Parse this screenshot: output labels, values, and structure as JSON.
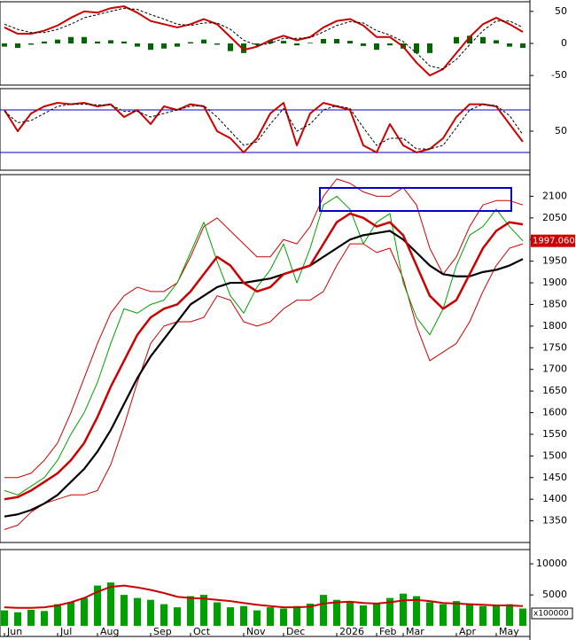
{
  "chart_data": [
    {
      "type": "line",
      "ylim": [
        -65,
        65
      ],
      "yticks": [
        -50,
        0,
        50
      ],
      "series": [
        {
          "type": "bar",
          "color": "#006600",
          "values": [
            -5,
            -7,
            -2,
            3,
            6,
            10,
            10,
            3,
            5,
            3,
            -5,
            -10,
            -8,
            -5,
            2,
            6,
            -2,
            -12,
            -15,
            -2,
            5,
            4,
            -3,
            1,
            7,
            7,
            4,
            -4,
            -10,
            -3,
            -8,
            -15,
            -15,
            0,
            10,
            12,
            10,
            5,
            -5,
            -7
          ]
        },
        {
          "type": "line",
          "color": "#cc0000",
          "values": [
            25,
            15,
            15,
            20,
            28,
            40,
            50,
            48,
            55,
            58,
            48,
            35,
            30,
            25,
            30,
            38,
            30,
            10,
            -10,
            -5,
            5,
            12,
            5,
            10,
            25,
            35,
            38,
            28,
            10,
            10,
            -5,
            -30,
            -50,
            -40,
            -15,
            10,
            30,
            40,
            30,
            18
          ]
        },
        {
          "type": "line",
          "color": "#000000",
          "dash": true,
          "values": [
            30,
            22,
            17,
            17,
            22,
            30,
            40,
            45,
            50,
            55,
            53,
            45,
            38,
            30,
            28,
            32,
            32,
            22,
            5,
            -3,
            0,
            8,
            8,
            9,
            18,
            28,
            34,
            32,
            20,
            13,
            3,
            -15,
            -35,
            -40,
            -25,
            -2,
            20,
            35,
            35,
            25
          ]
        }
      ]
    },
    {
      "type": "line",
      "ylim": [
        -5,
        110
      ],
      "yticks": [
        50
      ],
      "reference_lines": [
        80,
        20
      ],
      "reference_color": "#0000cc",
      "series": [
        {
          "type": "line",
          "color": "#cc0000",
          "values": [
            80,
            50,
            75,
            85,
            90,
            88,
            90,
            85,
            88,
            70,
            80,
            60,
            85,
            80,
            88,
            85,
            50,
            40,
            20,
            40,
            75,
            90,
            30,
            75,
            90,
            85,
            80,
            30,
            20,
            60,
            30,
            20,
            25,
            40,
            70,
            88,
            88,
            85,
            60,
            35
          ]
        },
        {
          "type": "line",
          "color": "#000000",
          "dash": true,
          "values": [
            78,
            62,
            65,
            75,
            85,
            88,
            88,
            87,
            87,
            78,
            78,
            70,
            75,
            80,
            85,
            86,
            70,
            50,
            30,
            35,
            60,
            82,
            50,
            60,
            80,
            86,
            82,
            55,
            30,
            40,
            40,
            25,
            25,
            30,
            55,
            80,
            88,
            86,
            72,
            45
          ]
        }
      ]
    },
    {
      "type": "line",
      "ylim": [
        1300,
        2150
      ],
      "yticks": [
        1350,
        1400,
        1450,
        1500,
        1550,
        1600,
        1650,
        1700,
        1750,
        1800,
        1850,
        1900,
        1950,
        2000,
        2050,
        2100
      ],
      "last_value_label": "1997.060",
      "series": [
        {
          "type": "line",
          "color": "#cc0000",
          "values": [
            1450,
            1450,
            1460,
            1490,
            1530,
            1600,
            1680,
            1760,
            1830,
            1870,
            1890,
            1880,
            1880,
            1900,
            1960,
            2030,
            2050,
            2020,
            1990,
            1960,
            1960,
            2000,
            1990,
            2030,
            2100,
            2140,
            2130,
            2110,
            2100,
            2100,
            2120,
            2080,
            1980,
            1920,
            1960,
            2030,
            2080,
            2090,
            2090,
            2080
          ]
        },
        {
          "type": "line",
          "color": "#cc0000",
          "values": [
            1330,
            1340,
            1370,
            1390,
            1400,
            1410,
            1410,
            1420,
            1480,
            1570,
            1670,
            1760,
            1800,
            1810,
            1810,
            1820,
            1870,
            1860,
            1810,
            1800,
            1810,
            1840,
            1860,
            1860,
            1880,
            1940,
            1990,
            1990,
            1970,
            1980,
            1910,
            1800,
            1720,
            1740,
            1760,
            1810,
            1880,
            1940,
            1980,
            1990
          ]
        },
        {
          "type": "line",
          "color": "#00a000",
          "values": [
            1420,
            1410,
            1430,
            1450,
            1490,
            1550,
            1600,
            1670,
            1760,
            1840,
            1830,
            1850,
            1860,
            1900,
            1970,
            2040,
            1950,
            1870,
            1830,
            1890,
            1930,
            1990,
            1900,
            1980,
            2080,
            2100,
            2070,
            1990,
            2040,
            2060,
            1900,
            1820,
            1780,
            1840,
            1940,
            2010,
            2030,
            2070,
            2030,
            1997.06
          ]
        },
        {
          "type": "line",
          "color": "#000000",
          "values": [
            1360,
            1365,
            1375,
            1390,
            1410,
            1440,
            1470,
            1510,
            1560,
            1620,
            1680,
            1730,
            1770,
            1810,
            1850,
            1870,
            1890,
            1900,
            1900,
            1905,
            1910,
            1920,
            1930,
            1940,
            1960,
            1980,
            2000,
            2010,
            2015,
            2020,
            2000,
            1970,
            1940,
            1920,
            1915,
            1915,
            1925,
            1930,
            1940,
            1955
          ]
        },
        {
          "type": "line",
          "color": "#cc0000",
          "values": [
            1400,
            1405,
            1420,
            1440,
            1460,
            1490,
            1530,
            1590,
            1660,
            1720,
            1780,
            1820,
            1840,
            1850,
            1880,
            1920,
            1960,
            1940,
            1900,
            1880,
            1890,
            1920,
            1930,
            1940,
            1990,
            2040,
            2060,
            2050,
            2030,
            2040,
            2010,
            1940,
            1870,
            1840,
            1860,
            1920,
            1980,
            2020,
            2040,
            2035
          ]
        }
      ]
    },
    {
      "type": "bar",
      "ylim": [
        -1700,
        12300
      ],
      "yticks": [
        5000,
        10000
      ],
      "unit_label": "x100000",
      "x": [
        "Jun",
        null,
        null,
        null,
        "Jul",
        null,
        null,
        "Aug",
        null,
        null,
        null,
        "Sep",
        null,
        null,
        "Oct",
        null,
        null,
        null,
        "Nov",
        null,
        null,
        "Dec",
        null,
        null,
        null,
        "2026",
        null,
        null,
        "Feb",
        null,
        "Mar",
        null,
        null,
        null,
        "Apr",
        null,
        null,
        "May",
        null,
        null
      ],
      "series": [
        {
          "type": "bar",
          "color": "#00a000",
          "values": [
            2500,
            2200,
            2600,
            2400,
            3500,
            3800,
            4500,
            6500,
            7000,
            5000,
            4500,
            4200,
            3500,
            3000,
            4800,
            5000,
            3800,
            3000,
            3200,
            2500,
            3000,
            2800,
            3200,
            3600,
            5000,
            4200,
            3800,
            3300,
            3600,
            4500,
            5200,
            4800,
            3800,
            3500,
            4000,
            3600,
            3200,
            3300,
            3500,
            2800
          ]
        },
        {
          "type": "line",
          "color": "#cc0000",
          "values": [
            3000,
            2900,
            2900,
            3000,
            3300,
            3800,
            4500,
            5500,
            6300,
            6500,
            6200,
            5800,
            5300,
            4700,
            4500,
            4400,
            4200,
            4000,
            3700,
            3400,
            3200,
            3000,
            3000,
            3100,
            3600,
            3800,
            3900,
            3700,
            3600,
            3800,
            4100,
            4200,
            4000,
            3700,
            3600,
            3500,
            3400,
            3300,
            3300,
            3200
          ]
        }
      ]
    }
  ]
}
